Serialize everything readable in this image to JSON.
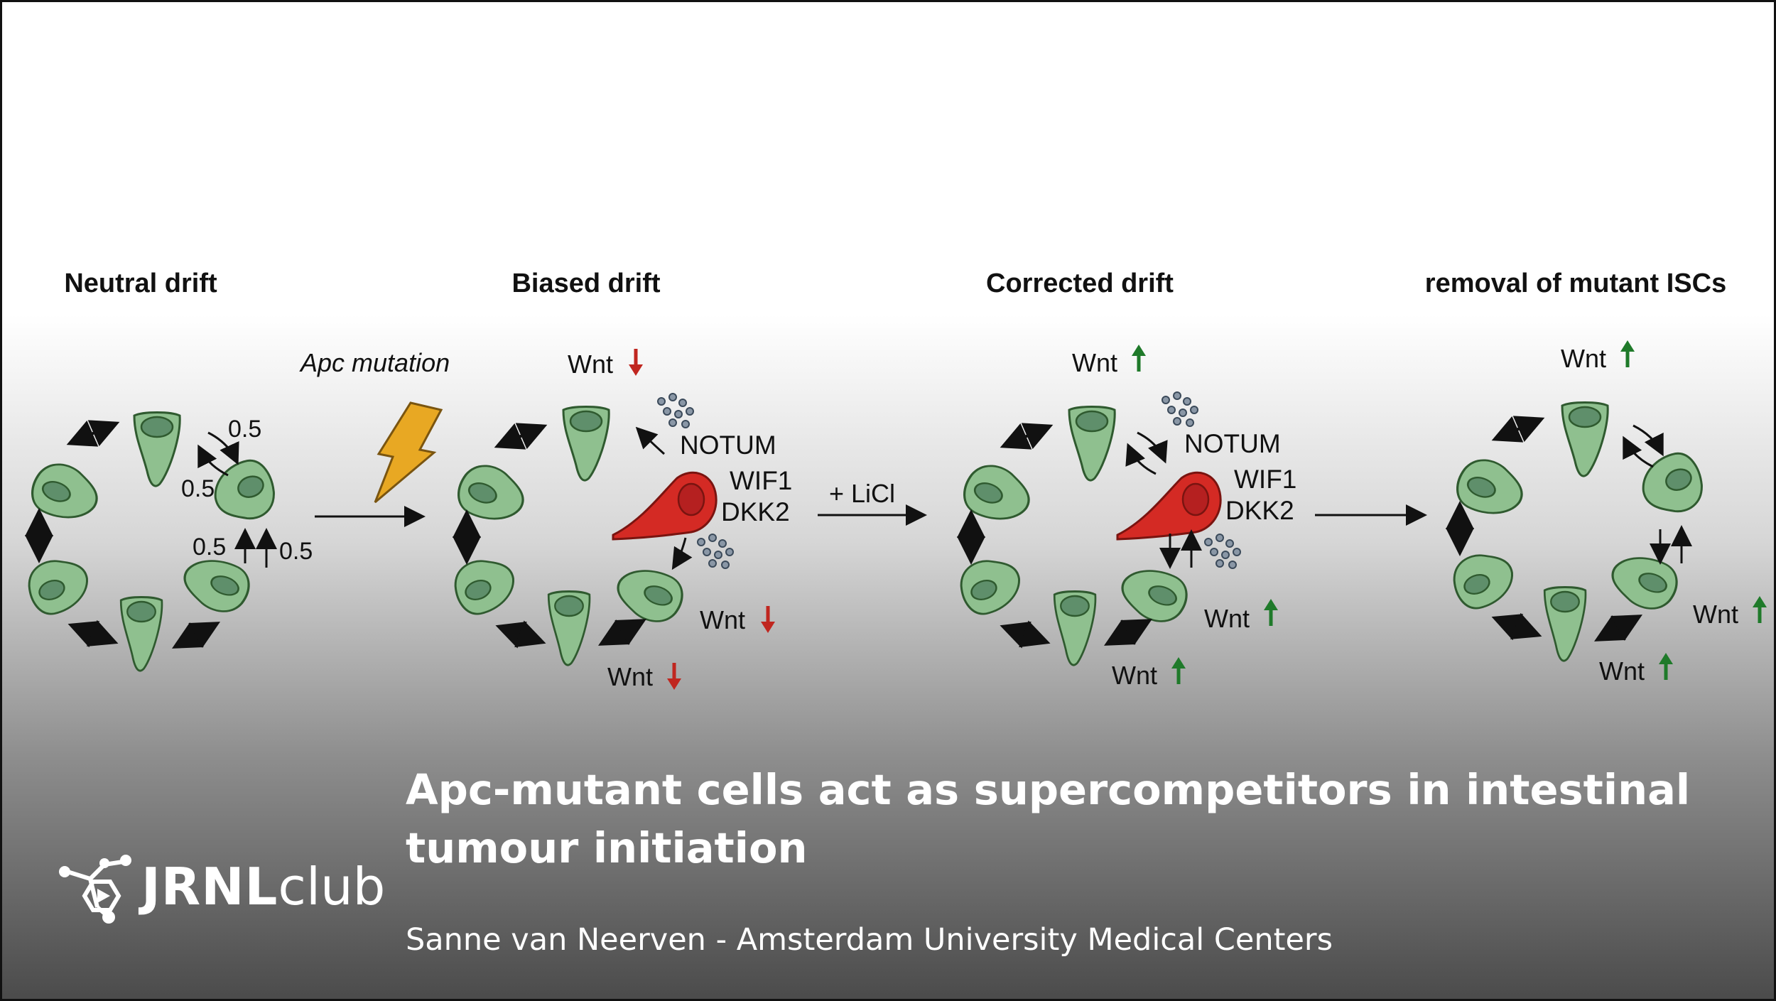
{
  "diagram": {
    "stages": [
      {
        "title": "Neutral drift"
      },
      {
        "title": "Biased drift"
      },
      {
        "title": "Corrected drift"
      },
      {
        "title": "removal of mutant ISCs"
      }
    ],
    "transition_labels": {
      "mutation": "Apc mutation",
      "treatment": "+ LiCl"
    },
    "probability_label": "0.5",
    "wnt_label": "Wnt",
    "genes": [
      "NOTUM",
      "WIF1",
      "DKK2"
    ],
    "colors": {
      "normal_cell_fill": "#8fc08f",
      "normal_cell_stroke": "#2f5a2f",
      "nucleus_fill": "#5f8f6b",
      "mutant_cell_fill": "#d42a24",
      "wnt_down_arrow": "#c0261f",
      "wnt_up_arrow": "#1f7a2a",
      "lightning": "#e8a823"
    }
  },
  "talk": {
    "title_line1": "Apc-mutant cells act as supercompetitors in intestinal",
    "title_line2": "tumour initiation",
    "speaker": "Sanne van Neerven - Amsterdam University Medical Centers"
  },
  "brand": {
    "logo_bold": "JRNL",
    "logo_light": "club"
  }
}
